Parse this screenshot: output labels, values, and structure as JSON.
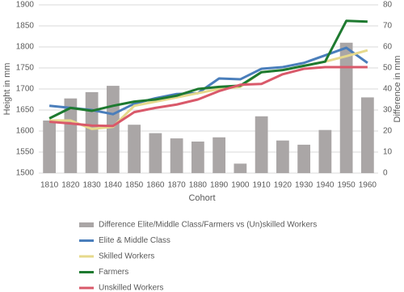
{
  "chart_data": {
    "type": "bar-line",
    "x_label": "Cohort",
    "y_label": "Height in mm",
    "y2_label": "Difference in mm",
    "categories": [
      "1810",
      "1820",
      "1830",
      "1840",
      "1850",
      "1860",
      "1870",
      "1880",
      "1890",
      "1900",
      "1910",
      "1920",
      "1930",
      "1940",
      "1950",
      "1960"
    ],
    "series": [
      {
        "name": "Difference Elite/Middle Class/Farmers vs (Un)skilled Workers",
        "type": "bar",
        "axis": "y2",
        "color": "#aaa6a6",
        "values": [
          25,
          35.5,
          38.5,
          41.5,
          23,
          19,
          16.5,
          15,
          17,
          4.5,
          27,
          15.5,
          13.5,
          20.5,
          62,
          36
        ]
      },
      {
        "name": "Elite & Middle Class",
        "type": "line",
        "color": "#4a7ebb",
        "values": [
          1660,
          1655,
          1650,
          1640,
          1665,
          1678,
          1688,
          1690,
          1725,
          1723,
          1748,
          1752,
          1762,
          1780,
          1798,
          1762
        ]
      },
      {
        "name": "Skilled Workers",
        "type": "line",
        "color": "#e6d98c",
        "values": [
          1625,
          1625,
          1605,
          1610,
          1660,
          1670,
          1680,
          1690,
          1700,
          1705,
          1740,
          1745,
          1755,
          1765,
          1778,
          1792
        ]
      },
      {
        "name": "Farmers",
        "type": "line",
        "color": "#1e7a30",
        "values": [
          1630,
          1655,
          1648,
          1660,
          1670,
          1675,
          1684,
          1700,
          1705,
          1708,
          1740,
          1745,
          1755,
          1765,
          1862,
          1860
        ]
      },
      {
        "name": "Unskilled Workers",
        "type": "line",
        "color": "#d9596a",
        "values": [
          1622,
          1618,
          1613,
          1612,
          1645,
          1655,
          1663,
          1675,
          1695,
          1710,
          1712,
          1735,
          1748,
          1752,
          1752,
          1752
        ]
      }
    ],
    "ylim": [
      1500,
      1900
    ],
    "yticks": [
      1500,
      1550,
      1600,
      1650,
      1700,
      1750,
      1800,
      1850,
      1900
    ],
    "y2lim": [
      0,
      80
    ],
    "y2ticks": [
      0,
      10,
      20,
      30,
      40,
      50,
      60,
      70,
      80
    ],
    "grid": true,
    "legend": "bottom"
  }
}
